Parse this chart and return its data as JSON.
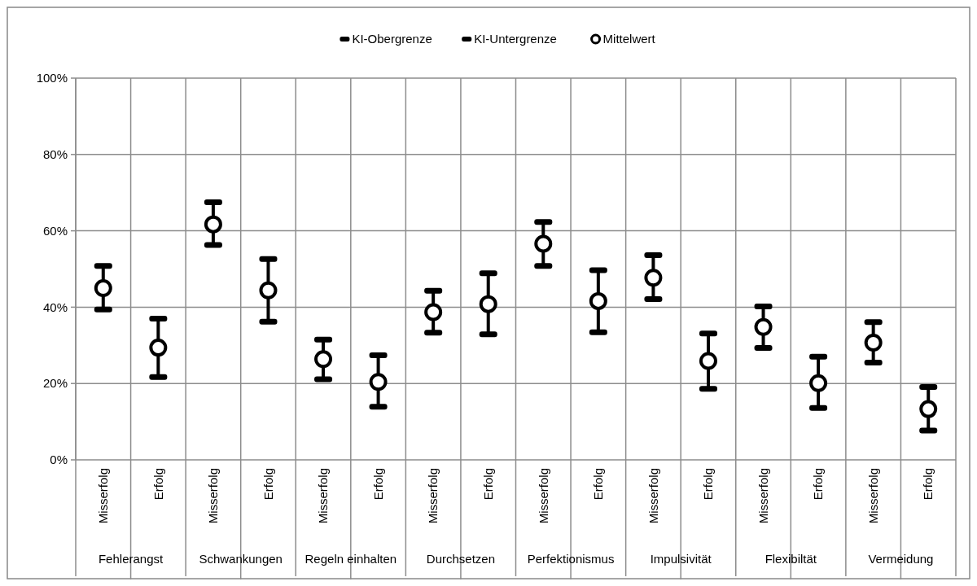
{
  "chart_data": {
    "type": "scatter",
    "categories": [
      "Misserfolg",
      "Erfolg",
      "Misserfolg",
      "Erfolg",
      "Misserfolg",
      "Erfolg",
      "Misserfolg",
      "Erfolg",
      "Misserfolg",
      "Erfolg",
      "Misserfolg",
      "Erfolg",
      "Misserfolg",
      "Erfolg",
      "Misserfolg",
      "Erfolg"
    ],
    "annotations": [
      "Fehlerangst",
      "Schwankungen",
      "Regeln einhalten",
      "Durchsetzen",
      "Perfektionismus",
      "Impulsivität",
      "Flexibiltät",
      "Vermeidung"
    ],
    "series": [
      {
        "name": "KI-Obergrenze",
        "color": "#000000",
        "values": [
          50.8,
          37.0,
          67.5,
          52.6,
          31.5,
          27.4,
          44.3,
          48.9,
          62.3,
          49.7,
          53.6,
          33.1,
          40.2,
          27.0,
          36.1,
          19.1
        ]
      },
      {
        "name": "KI-Untergrenze",
        "color": "#000000",
        "values": [
          39.4,
          21.7,
          56.3,
          36.2,
          21.1,
          13.9,
          33.3,
          32.9,
          50.8,
          33.4,
          42.1,
          18.6,
          29.3,
          13.6,
          25.5,
          7.7
        ]
      },
      {
        "name": "Mittelwert",
        "color": "#000000",
        "marker": "circle",
        "values": [
          45.0,
          29.4,
          61.7,
          44.4,
          26.4,
          20.4,
          38.7,
          40.8,
          56.6,
          41.6,
          47.7,
          25.9,
          34.8,
          20.1,
          30.7,
          13.3
        ]
      }
    ],
    "ylim": [
      0,
      100
    ],
    "yticks": [
      {
        "value": 0,
        "label": "0%"
      },
      {
        "value": 20,
        "label": "20%"
      },
      {
        "value": 40,
        "label": "40%"
      },
      {
        "value": 60,
        "label": "60%"
      },
      {
        "value": 80,
        "label": "80%"
      },
      {
        "value": 100,
        "label": "100%"
      }
    ],
    "grid": true,
    "legend": "top"
  }
}
